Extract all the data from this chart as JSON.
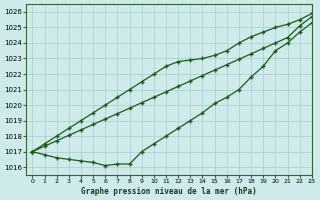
{
  "title": "Graphe pression niveau de la mer (hPa)",
  "background_color": "#ceeaea",
  "grid_color": "#a8cccc",
  "line_color": "#1a5c1a",
  "xlim": [
    -0.5,
    23
  ],
  "ylim": [
    1015.5,
    1026.5
  ],
  "yticks": [
    1016,
    1017,
    1018,
    1019,
    1020,
    1021,
    1022,
    1023,
    1024,
    1025,
    1026
  ],
  "xticks": [
    0,
    1,
    2,
    3,
    4,
    5,
    6,
    7,
    8,
    9,
    10,
    11,
    12,
    13,
    14,
    15,
    16,
    17,
    18,
    19,
    20,
    21,
    22,
    23
  ],
  "series_steep1": [
    1017.0,
    1017.35,
    1017.7,
    1018.05,
    1018.4,
    1018.75,
    1019.1,
    1019.45,
    1019.8,
    1020.15,
    1020.5,
    1020.85,
    1021.2,
    1021.55,
    1021.9,
    1022.25,
    1022.6,
    1022.95,
    1023.3,
    1023.65,
    1024.0,
    1024.35,
    1025.1,
    1025.7
  ],
  "series_steep2": [
    1017.0,
    1017.5,
    1018.0,
    1018.5,
    1019.0,
    1019.5,
    1020.0,
    1020.5,
    1021.0,
    1021.5,
    1022.0,
    1022.5,
    1022.8,
    1022.9,
    1023.0,
    1023.2,
    1023.5,
    1024.0,
    1024.4,
    1024.7,
    1025.0,
    1025.2,
    1025.5,
    1025.9
  ],
  "series_dip": [
    1017.0,
    1016.8,
    1016.6,
    1016.5,
    1016.4,
    1016.3,
    1016.1,
    1016.2,
    1016.2,
    1017.0,
    1017.5,
    1018.0,
    1018.5,
    1019.0,
    1019.5,
    1020.1,
    1020.5,
    1021.0,
    1021.8,
    1022.5,
    1023.5,
    1024.0,
    1024.7,
    1025.3
  ]
}
